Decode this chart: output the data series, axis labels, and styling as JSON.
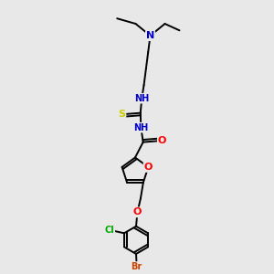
{
  "background_color": "#e8e8e8",
  "bond_color": "#000000",
  "atom_colors": {
    "N": "#0000cc",
    "O": "#ff0000",
    "S": "#cccc00",
    "Cl": "#00aa00",
    "Br": "#cc4400",
    "C": "#000000",
    "H": "#000000"
  },
  "figsize": [
    3.0,
    3.0
  ],
  "dpi": 100
}
